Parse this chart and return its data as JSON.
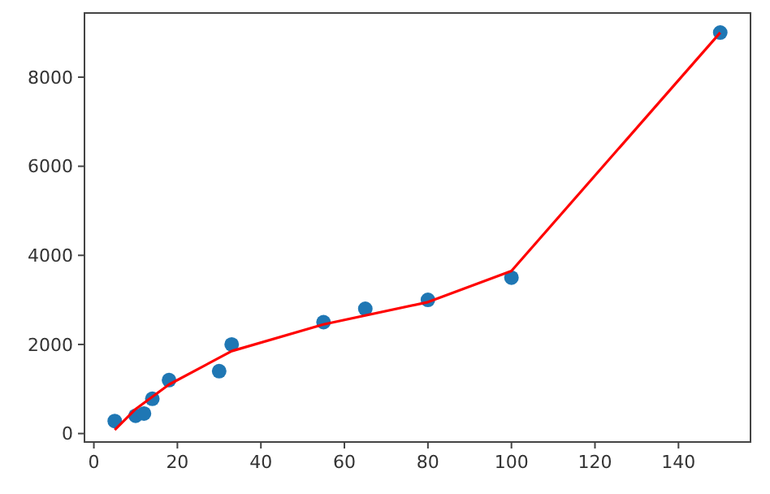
{
  "chart_data": {
    "type": "scatter",
    "xlim": [
      -2.25,
      157.25
    ],
    "ylim": [
      -190,
      9440
    ],
    "xticks": [
      0,
      20,
      40,
      60,
      80,
      100,
      120,
      140
    ],
    "yticks": [
      0,
      2000,
      4000,
      6000,
      8000
    ],
    "grid": false,
    "series": [
      {
        "color": "#1f77b4",
        "marker": "circle",
        "x": [
          5,
          10,
          12,
          14,
          18,
          30,
          33,
          55,
          65,
          80,
          100,
          150
        ],
        "values": [
          280,
          400,
          450,
          780,
          1200,
          1400,
          2000,
          2500,
          2800,
          3000,
          3500,
          9000
        ]
      },
      {
        "type": "line",
        "color": "#ff0000",
        "marker": "none",
        "line_style": "solid",
        "x": [
          5,
          10,
          18,
          33,
          55,
          80,
          100,
          150
        ],
        "values": [
          80,
          550,
          1100,
          1850,
          2450,
          2950,
          3650,
          9000
        ]
      }
    ]
  }
}
